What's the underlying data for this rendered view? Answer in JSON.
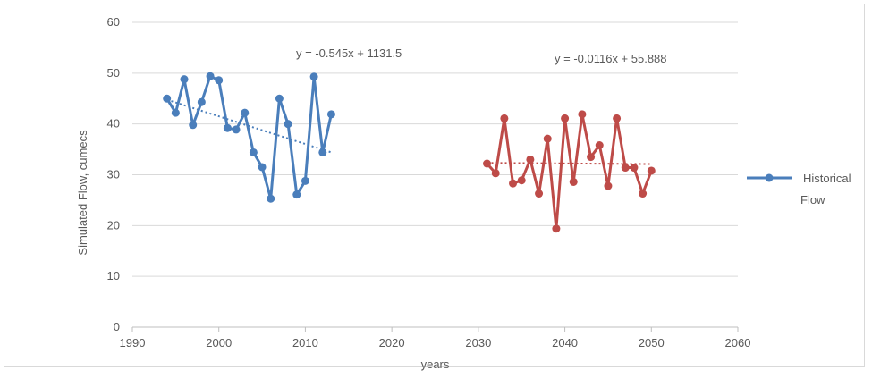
{
  "chart_data": {
    "type": "scatter",
    "xlabel": "years",
    "ylabel": "Simulated Flow, cumecs",
    "xlim": [
      1990,
      2060
    ],
    "ylim": [
      0,
      60
    ],
    "x_ticks": [
      1990,
      2000,
      2010,
      2020,
      2030,
      2040,
      2050,
      2060
    ],
    "y_ticks": [
      0,
      10,
      20,
      30,
      40,
      50,
      60
    ],
    "grid": "horizontal",
    "legend": {
      "position": "right",
      "entries": [
        "Historical Flow"
      ]
    },
    "series": [
      {
        "name": "Historical Flow",
        "color": "#4a7ebb",
        "x": [
          1994,
          1995,
          1996,
          1997,
          1998,
          1999,
          2000,
          2001,
          2002,
          2003,
          2004,
          2005,
          2006,
          2007,
          2008,
          2009,
          2010,
          2011,
          2012,
          2013
        ],
        "y": [
          45,
          42.2,
          48.8,
          39.8,
          44.3,
          49.4,
          48.6,
          39.2,
          38.9,
          42.2,
          34.4,
          31.5,
          25.3,
          45,
          40,
          26.1,
          28.8,
          49.3,
          34.4,
          41.9
        ],
        "trendline": {
          "slope": -0.545,
          "intercept": 1131.5,
          "x_range": [
            1994,
            2013
          ],
          "equation": "y = -0.545x + 1131.5"
        }
      },
      {
        "name": "",
        "color": "#be4b48",
        "x": [
          2031,
          2032,
          2033,
          2034,
          2035,
          2036,
          2037,
          2038,
          2039,
          2040,
          2041,
          2042,
          2043,
          2044,
          2045,
          2046,
          2047,
          2048,
          2049,
          2050
        ],
        "y": [
          32.2,
          30.3,
          41.1,
          28.3,
          28.9,
          33,
          26.3,
          37.1,
          19.4,
          41.1,
          28.6,
          41.9,
          33.5,
          35.8,
          27.8,
          41.1,
          31.4,
          31.4,
          26.3,
          30.8
        ],
        "trendline": {
          "slope": -0.0116,
          "intercept": 55.888,
          "x_range": [
            2031,
            2050
          ],
          "equation": "y = -0.0116x + 55.888"
        }
      }
    ]
  }
}
